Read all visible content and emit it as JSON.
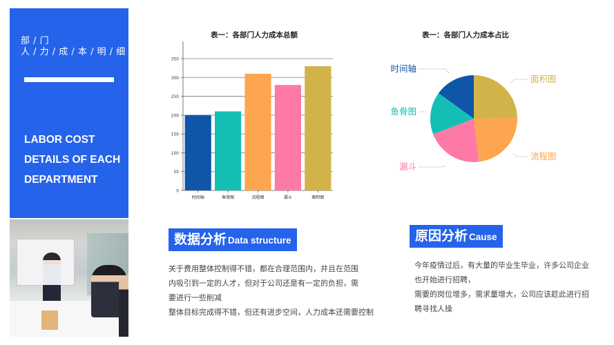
{
  "sidebar": {
    "title_cn_line1": "部 / 门",
    "title_cn_line2": "人 / 力 / 成 / 本 / 明 / 细",
    "title_en_lines": [
      "LABOR COST",
      "DETAILS OF EACH",
      "DEPARTMENT"
    ],
    "panel_color": "#2563eb"
  },
  "photo": {
    "description": "office meeting photo: presenter at whiteboard, colleagues applauding"
  },
  "chart_data": [
    {
      "type": "bar",
      "title": "表一：各部门人力成本总额",
      "categories": [
        "时间轴",
        "鱼骨图",
        "流程图",
        "漏斗",
        "面积图"
      ],
      "values": [
        200,
        210,
        310,
        280,
        330
      ],
      "colors": [
        "#0f55a8",
        "#13bfb4",
        "#fea54f",
        "#fe7aa6",
        "#d2b34a"
      ],
      "xlabel": "",
      "ylabel": "",
      "ylim": [
        0,
        350
      ],
      "yticks": [
        0,
        50,
        100,
        150,
        200,
        250,
        300,
        350
      ],
      "grid": true,
      "legend": "none"
    },
    {
      "type": "pie",
      "title": "表一：各部门人力成本占比",
      "categories": [
        "面积图",
        "流程图",
        "漏斗",
        "鱼骨图",
        "时间轴"
      ],
      "values": [
        330,
        310,
        280,
        210,
        200
      ],
      "percent": [
        24.8,
        23.3,
        21.1,
        15.8,
        15.0
      ],
      "colors": [
        "#d2b34a",
        "#fea54f",
        "#fe7aa6",
        "#13bfb4",
        "#0f55a8"
      ],
      "start_angle": "12 o'clock, clockwise",
      "labels": "outside with dotted leader lines"
    }
  ],
  "sections": {
    "data_analysis": {
      "tag_cn": "数据分析",
      "tag_en": "Data structure",
      "lines": [
        "关于费用整体控制得不错，都在合理范围内，并且在范围",
        "内吸引到一定的人才，但对于公司还是有一定的负担，需",
        "要进行一些削减",
        "整体目标完成得不错，但还有进步空间，人力成本还需要控制"
      ]
    },
    "cause": {
      "tag_cn": "原因分析",
      "tag_en": "Cause",
      "lines": [
        "今年疫情过后，有大量的毕业生毕业，许多公司企业",
        "也开始进行招聘，",
        "需要的岗位增多，需求量增大，公司应该趁此进行招",
        "聘寻找人操"
      ]
    }
  }
}
